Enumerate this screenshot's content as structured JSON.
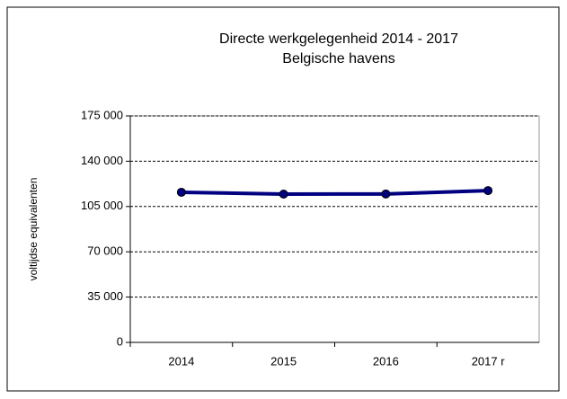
{
  "chart_data": {
    "type": "line",
    "title": "Directe werkgelegenheid  2014 - 2017",
    "subtitle": "Belgische havens",
    "y_label": "voltijdse equivalenten",
    "categories": [
      "2014",
      "2015",
      "2016",
      "2017 r"
    ],
    "series": [
      {
        "name": "Directe werkgelegenheid",
        "color": "#000080",
        "values": [
          116000,
          114600,
          114700,
          117300
        ]
      }
    ],
    "ylim": [
      0,
      175000
    ],
    "yticks": [
      0,
      {
        "value": 35000,
        "label": "35 000"
      },
      {
        "value": 70000,
        "label": "70 000"
      },
      {
        "value": 105000,
        "label": "105 000"
      },
      {
        "value": 140000,
        "label": "140 000"
      },
      {
        "value": 175000,
        "label": "175 000"
      }
    ],
    "grid": true
  }
}
